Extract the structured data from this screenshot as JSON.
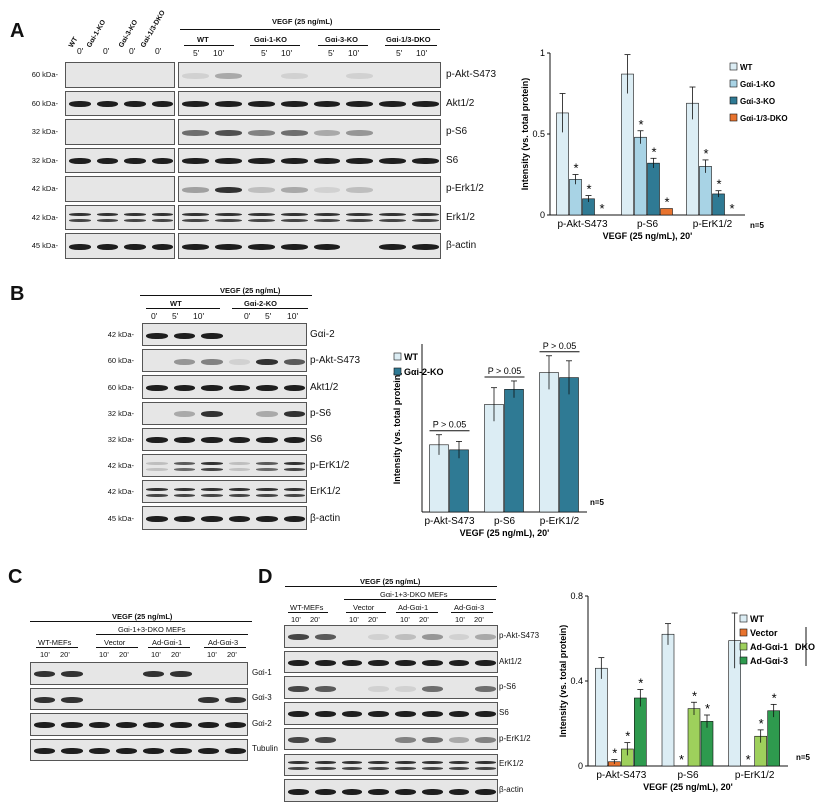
{
  "panels": {
    "A": {
      "letter": "A",
      "lanes_left": [
        "WT",
        "Gαi-1-KO",
        "Gαi-3-KO",
        "Gαi-1/3-DKO"
      ],
      "time_left": "0'",
      "treatment": "VEGF (25 ng/mL)",
      "groups": [
        "WT",
        "Gαi-1-KO",
        "Gαi-3-KO",
        "Gαi-1/3-DKO"
      ],
      "times": [
        "5'",
        "10'"
      ],
      "kda": [
        "60 kDa-",
        "60 kDa-",
        "32 kDa-",
        "32 kDa-",
        "42 kDa-",
        "42 kDa-",
        "45 kDa-"
      ],
      "rows": [
        "p-Akt-S473",
        "Akt1/2",
        "p-S6",
        "S6",
        "p-Erk1/2",
        "Erk1/2",
        "β-actin"
      ]
    },
    "B": {
      "letter": "B",
      "treatment": "VEGF (25 ng/mL)",
      "groups": [
        "WT",
        "Gαi-2-KO"
      ],
      "times": [
        "0'",
        "5'",
        "10'"
      ],
      "kda": [
        "42 kDa-",
        "60 kDa-",
        "60 kDa-",
        "32 kDa-",
        "32 kDa-",
        "42 kDa-",
        "42 kDa-",
        "45 kDa-"
      ],
      "rows": [
        "Gαi-2",
        "p-Akt-S473",
        "Akt1/2",
        "p-S6",
        "S6",
        "p-ErK1/2",
        "ErK1/2",
        "β-actin"
      ]
    },
    "C": {
      "letter": "C",
      "treatment": "VEGF (25 ng/mL)",
      "subheader": "Gαi-1+3-DKO MEFs",
      "groups": [
        "WT-MEFs",
        "Vector",
        "Ad-Gαi-1",
        "Ad-Gαi-3"
      ],
      "times": [
        "10'",
        "20'"
      ],
      "rows": [
        "Gαi-1",
        "Gαi-3",
        "Gαi-2",
        "Tubulin"
      ]
    },
    "D": {
      "letter": "D",
      "treatment": "VEGF (25 ng/mL)",
      "subheader": "Gαi-1+3-DKO MEFs",
      "groups": [
        "WT-MEFs",
        "Vector",
        "Ad-Gαi-1",
        "Ad-Gαi-3"
      ],
      "times": [
        "10'",
        "20'"
      ],
      "rows": [
        "p-Akt-S473",
        "Akt1/2",
        "p-S6",
        "S6",
        "p-ErK1/2",
        "ErK1/2",
        "β-actin"
      ]
    }
  },
  "chart_data": [
    {
      "type": "bar",
      "id": "A",
      "categories": [
        "p-Akt-S473",
        "p-S6",
        "p-ErK1/2"
      ],
      "series": [
        {
          "name": "WT",
          "values": [
            0.63,
            0.87,
            0.69
          ],
          "errors": [
            0.12,
            0.12,
            0.1
          ],
          "color": "#dcedf4"
        },
        {
          "name": "Gαi-1-KO",
          "values": [
            0.22,
            0.48,
            0.3
          ],
          "errors": [
            0.03,
            0.04,
            0.04
          ],
          "color": "#a8d3e5"
        },
        {
          "name": "Gαi-3-KO",
          "values": [
            0.1,
            0.32,
            0.13
          ],
          "errors": [
            0.02,
            0.03,
            0.02
          ],
          "color": "#2f7a94"
        },
        {
          "name": "Gαi-1/3-DKO",
          "values": [
            0.0,
            0.04,
            0.0
          ],
          "errors": [
            0,
            0,
            0
          ],
          "color": "#e8732e"
        }
      ],
      "ylabel": "Intensity (vs. total protein)",
      "xlabel": "VEGF (25 ng/mL), 20'",
      "ylim": [
        0,
        1
      ],
      "yticks": [
        "0",
        "0.5",
        "1"
      ],
      "n_label": "n=5",
      "legend": "right"
    },
    {
      "type": "bar",
      "id": "B",
      "categories": [
        "p-Akt-S473",
        "p-S6",
        "p-ErK1/2"
      ],
      "series": [
        {
          "name": "WT",
          "values": [
            0.4,
            0.64,
            0.83
          ],
          "errors": [
            0.06,
            0.1,
            0.1
          ],
          "color": "#dcedf4"
        },
        {
          "name": "Gαi-2-KO",
          "values": [
            0.37,
            0.73,
            0.8
          ],
          "errors": [
            0.05,
            0.05,
            0.1
          ],
          "color": "#2f7a94"
        }
      ],
      "annotations": [
        "P > 0.05",
        "P > 0.05",
        "P > 0.05"
      ],
      "ylabel": "Intensity (vs. total protein)",
      "xlabel": "VEGF (25 ng/mL), 20'",
      "n_label": "n=5",
      "legend": "top-left"
    },
    {
      "type": "bar",
      "id": "D",
      "categories": [
        "p-Akt-S473",
        "p-S6",
        "p-ErK1/2"
      ],
      "series": [
        {
          "name": "WT",
          "values": [
            0.46,
            0.62,
            0.59
          ],
          "errors": [
            0.05,
            0.05,
            0.13
          ],
          "color": "#dcedf4"
        },
        {
          "name": "Vector",
          "values": [
            0.02,
            0.0,
            0.0
          ],
          "errors": [
            0.01,
            0,
            0
          ],
          "color": "#e8732e"
        },
        {
          "name": "Ad-Gαi-1",
          "values": [
            0.08,
            0.27,
            0.14
          ],
          "errors": [
            0.03,
            0.03,
            0.03
          ],
          "color": "#9ed05c"
        },
        {
          "name": "Ad-Gαi-3",
          "values": [
            0.32,
            0.21,
            0.26
          ],
          "errors": [
            0.04,
            0.03,
            0.03
          ],
          "color": "#2e9a4e"
        }
      ],
      "legend_bracket": "DKO",
      "ylabel": "Intensity (vs. total protein)",
      "xlabel": "VEGF (25 ng/mL), 20'",
      "ylim": [
        0,
        0.8
      ],
      "yticks": [
        "0",
        "0.4",
        "0.8"
      ],
      "n_label": "n=5",
      "legend": "top-right"
    }
  ]
}
